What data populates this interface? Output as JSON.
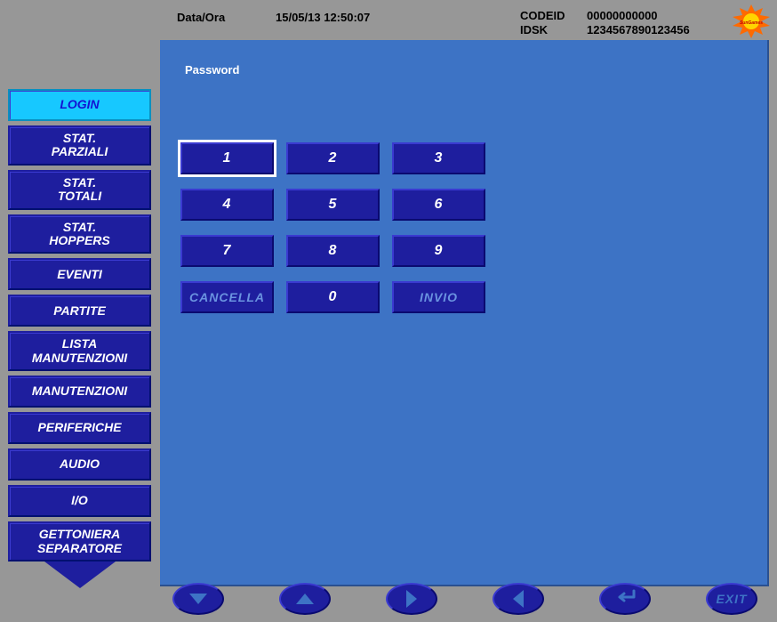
{
  "header": {
    "dataora_label": "Data/Ora",
    "dataora_value": "15/05/13  12:50:07",
    "codeid_label": "CODEID",
    "codeid_value": "00000000000",
    "idsk_label": "IDSK",
    "idsk_value": "1234567890123456"
  },
  "logo": {
    "name": "SunGames",
    "colors": {
      "burst": "#ff6a00",
      "center": "#ffd400",
      "text": "#c40000"
    }
  },
  "sidebar": {
    "active_index": 0,
    "items": [
      "LOGIN",
      "STAT. PARZIALI",
      "STAT. TOTALI",
      "STAT. HOPPERS",
      "EVENTI",
      "PARTITE",
      "LISTA MANUTENZIONI",
      "MANUTENZIONI",
      "PERIFERICHE",
      "AUDIO",
      "I/O",
      "GETTONIERA SEPARATORE"
    ]
  },
  "panel": {
    "title": "Password",
    "keypad": {
      "selected_index": 0,
      "rows": [
        [
          {
            "label": "1",
            "name": "key-1"
          },
          {
            "label": "2",
            "name": "key-2"
          },
          {
            "label": "3",
            "name": "key-3"
          }
        ],
        [
          {
            "label": "4",
            "name": "key-4"
          },
          {
            "label": "5",
            "name": "key-5"
          },
          {
            "label": "6",
            "name": "key-6"
          }
        ],
        [
          {
            "label": "7",
            "name": "key-7"
          },
          {
            "label": "8",
            "name": "key-8"
          },
          {
            "label": "9",
            "name": "key-9"
          }
        ],
        [
          {
            "label": "CANCELLA",
            "name": "key-cancel",
            "wide": true
          },
          {
            "label": "0",
            "name": "key-0"
          },
          {
            "label": "INVIO",
            "name": "key-enter",
            "wide": true
          }
        ]
      ]
    }
  },
  "bottom_nav": {
    "buttons": [
      {
        "name": "nav-down",
        "icon": "down"
      },
      {
        "name": "nav-up",
        "icon": "up"
      },
      {
        "name": "nav-right",
        "icon": "right"
      },
      {
        "name": "nav-left",
        "icon": "left"
      },
      {
        "name": "nav-enter",
        "icon": "enter"
      },
      {
        "name": "nav-exit",
        "icon": "exit",
        "label": "EXIT"
      }
    ]
  },
  "colors": {
    "bg": "#979797",
    "panel": "#3d73c5",
    "button": "#1e1e9e",
    "button_active_bg": "#17c8ff",
    "button_active_fg": "#1313d3",
    "text_light": "#ffffff",
    "text_dim": "#6a93e0"
  }
}
